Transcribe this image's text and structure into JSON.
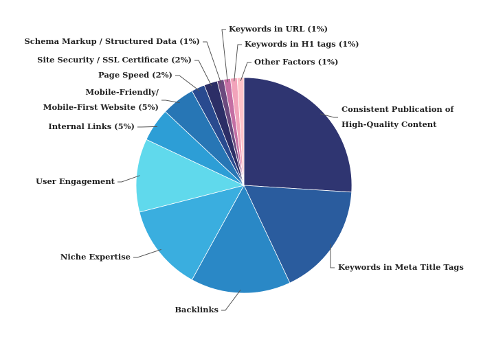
{
  "chart_data": {
    "type": "pie",
    "categories": [
      [
        "Consistent Publication of",
        "High-Quality Content"
      ],
      [
        "Keywords in Meta Title Tags"
      ],
      [
        "Backlinks"
      ],
      [
        "Niche Expertise"
      ],
      [
        "User Engagement"
      ],
      [
        "Internal Links (5%)"
      ],
      [
        "Mobile-Friendly/",
        "Mobile-First Website (5%)"
      ],
      [
        "Page Speed (2%)"
      ],
      [
        "Site Security / SSL Certificate (2%)"
      ],
      [
        "Schema Markup / Structured Data (1%)"
      ],
      [
        "Keywords in URL (1%)"
      ],
      [
        "Keywords in H1 tags (1%)"
      ],
      [
        "Other Factors (1%)"
      ]
    ],
    "values": [
      26,
      17,
      15,
      13,
      11,
      5,
      5,
      2,
      2,
      1,
      1,
      1,
      1
    ],
    "colors": [
      "#2f3571",
      "#2a5c9e",
      "#2a88c6",
      "#3aaedf",
      "#60d9ec",
      "#2d9ed6",
      "#2776b5",
      "#294a8f",
      "#2c2e66",
      "#6b4a7e",
      "#c46ea3",
      "#f2a3ba",
      "#ffc3c9"
    ]
  }
}
